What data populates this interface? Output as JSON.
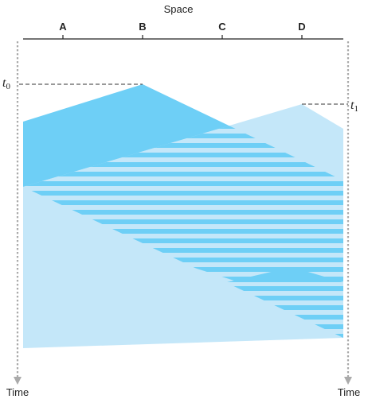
{
  "axis": {
    "space_label": "Space",
    "time_label_left": "Time",
    "time_label_right": "Time"
  },
  "nodes": [
    {
      "id": "A",
      "label": "A"
    },
    {
      "id": "B",
      "label": "B"
    },
    {
      "id": "C",
      "label": "C"
    },
    {
      "id": "D",
      "label": "D"
    }
  ],
  "events": [
    {
      "id": "t0",
      "symbol": "t",
      "subscript": "0",
      "origin_node": "B"
    },
    {
      "id": "t1",
      "symbol": "t",
      "subscript": "1",
      "origin_node": "D"
    }
  ],
  "colors": {
    "transmission_from_B": "#6ecff6",
    "transmission_from_D": "#c4e7f9",
    "axis_line": "#222222",
    "time_arrow": "#aaaaaa",
    "dashed_marker": "#333333"
  }
}
